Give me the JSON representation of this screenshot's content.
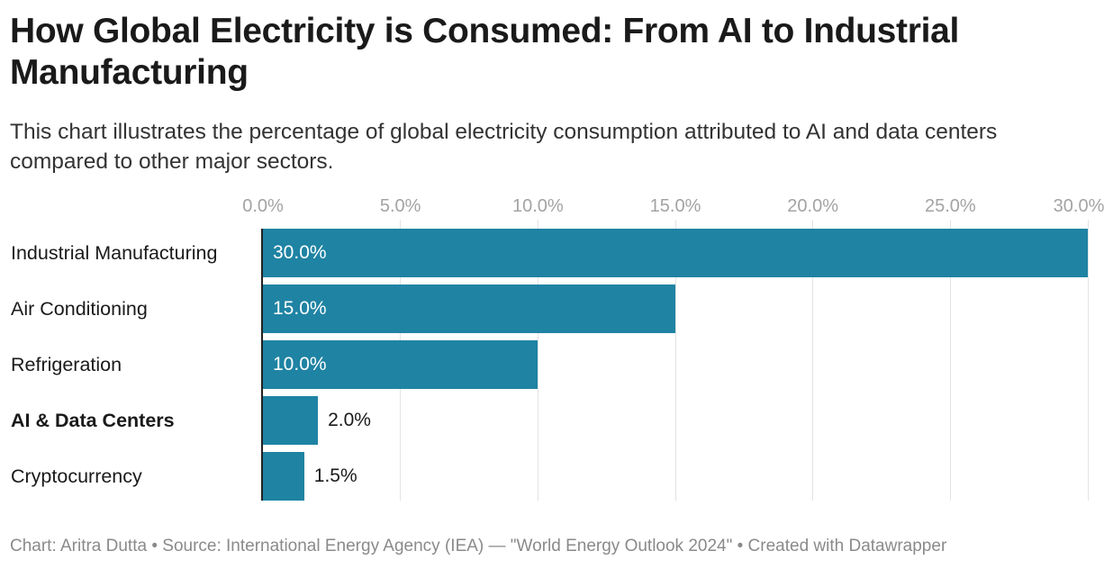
{
  "title": "How Global Electricity is Consumed: From AI to Industrial Manufacturing",
  "subtitle": "This chart illustrates the percentage of global electricity consumption attributed to AI and data centers compared to other major sectors.",
  "footer": "Chart: Aritra Dutta • Source: International Energy Agency (IEA) — \"World Energy Outlook 2024\" • Created with Datawrapper",
  "colors": {
    "bar": "#1f83a3",
    "label_inside": "#ffffff",
    "label_outside": "#1a1a1a"
  },
  "chart_data": {
    "type": "bar",
    "orientation": "horizontal",
    "categories": [
      "Industrial Manufacturing",
      "Air Conditioning",
      "Refrigeration",
      "AI & Data Centers",
      "Cryptocurrency"
    ],
    "values": [
      30.0,
      15.0,
      10.0,
      2.0,
      1.5
    ],
    "value_labels": [
      "30.0%",
      "15.0%",
      "10.0%",
      "2.0%",
      "1.5%"
    ],
    "highlighted": [
      "AI & Data Centers"
    ],
    "xlim": [
      0,
      30
    ],
    "xticks": [
      0,
      5,
      10,
      15,
      20,
      25,
      30
    ],
    "xtick_labels": [
      "0.0%",
      "5.0%",
      "10.0%",
      "15.0%",
      "20.0%",
      "25.0%",
      "30.0%"
    ],
    "xlabel": "",
    "ylabel": "",
    "grid": true,
    "tick_position": "top"
  }
}
